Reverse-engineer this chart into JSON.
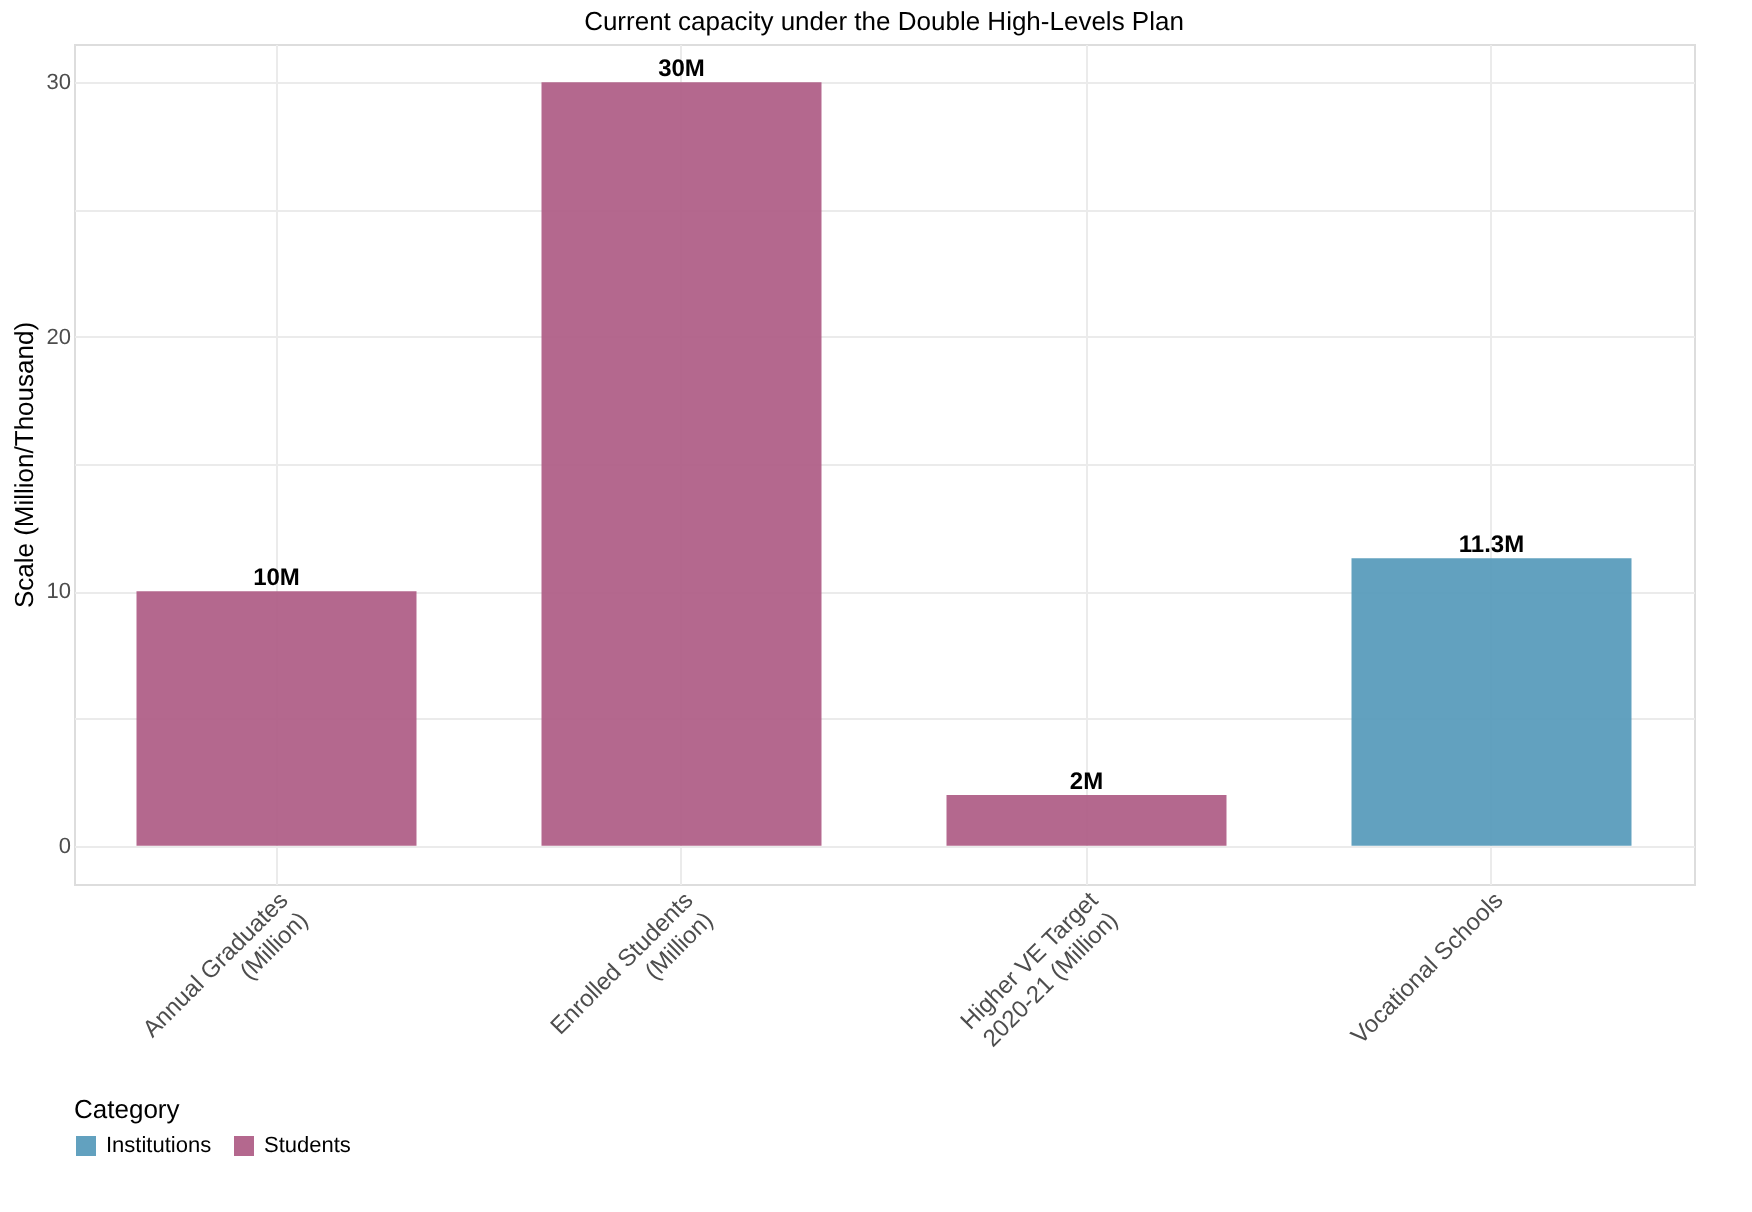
{
  "chart_data": {
    "type": "bar",
    "title": "Current capacity under the Double High-Levels Plan",
    "ylabel": "Scale (Million/Thousand)",
    "legend_title": "Category",
    "categories": [
      "Annual Graduates\n(Million)",
      "Enrolled Students\n(Million)",
      "Higher VE Target\n2020-21 (Million)",
      "Vocational Schools"
    ],
    "series": [
      {
        "name": "Institutions",
        "color": "#5a9cbc",
        "values": [
          null,
          null,
          null,
          11.3
        ],
        "value_labels": [
          null,
          null,
          null,
          "11.3M"
        ]
      },
      {
        "name": "Students",
        "color": "#b06088",
        "values": [
          10,
          30,
          2,
          null
        ],
        "value_labels": [
          "10M",
          "30M",
          "2M",
          null
        ]
      }
    ],
    "ylim": [
      -1.5,
      31.5
    ],
    "yticks": [
      0,
      {
        "value": 5,
        "label": null
      },
      10,
      {
        "value": 15,
        "label": null
      },
      20,
      {
        "value": 25,
        "label": null
      },
      30
    ],
    "grid": true,
    "legend": "bottom"
  }
}
